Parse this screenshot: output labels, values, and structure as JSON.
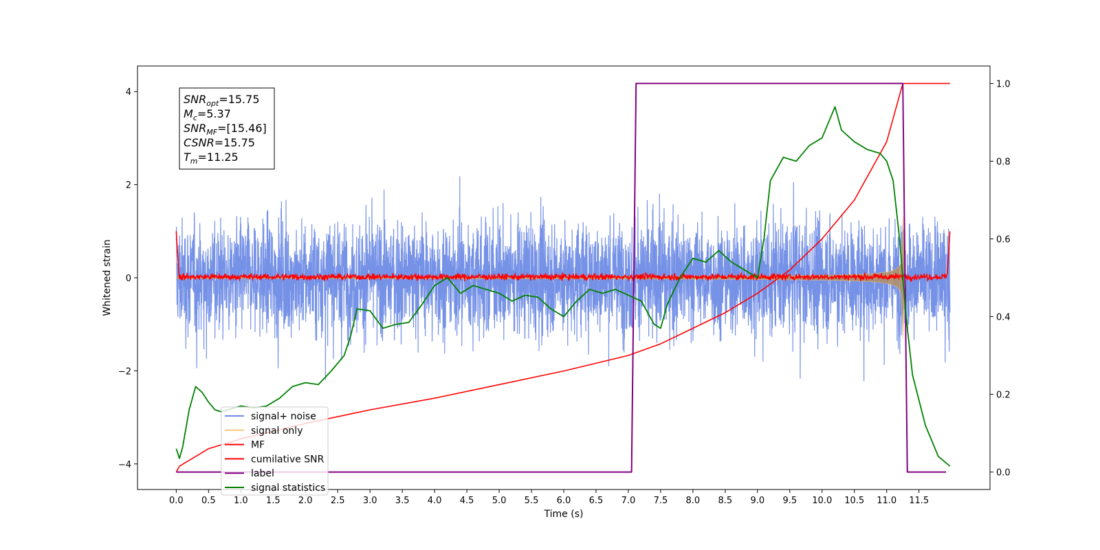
{
  "chart_data": {
    "type": "line",
    "xlabel": "Time (s)",
    "ylabel": "Whitened strain",
    "xlim": [
      -0.6,
      12.6
    ],
    "ylim": [
      -4.55,
      4.55
    ],
    "y2lim": [
      -0.045,
      1.045
    ],
    "x_ticks": [
      "0.0",
      "0.5",
      "1.0",
      "1.5",
      "2.0",
      "2.5",
      "3.0",
      "3.5",
      "4.0",
      "4.5",
      "5.0",
      "5.5",
      "6.0",
      "6.5",
      "7.0",
      "7.5",
      "8.0",
      "8.5",
      "9.0",
      "9.5",
      "10.0",
      "10.5",
      "11.0",
      "11.5"
    ],
    "y_ticks": [
      "4",
      "2",
      "0",
      "−2",
      "−4"
    ],
    "y2_ticks": [
      "1.0",
      "0.8",
      "0.6",
      "0.4",
      "0.2",
      "0.0"
    ],
    "grid": false,
    "legend_position": "lower-left",
    "annotation": [
      {
        "base": "SNR",
        "sub": "opt",
        "rest": "=15.75"
      },
      {
        "base": "M",
        "sub": "c",
        "rest": "=5.37"
      },
      {
        "base": "SNR",
        "sub": "MF",
        "rest": "=[15.46]"
      },
      {
        "base": "CSNR",
        "sub": "",
        "rest": "=15.75"
      },
      {
        "base": "T",
        "sub": "m",
        "rest": "=11.25"
      }
    ],
    "series": [
      {
        "name": "signal+ noise",
        "color": "#6f8ce6",
        "axis": "left",
        "description": "noisy whitened strain, amplitude roughly ±2.5 with spikes to ±4",
        "x_range": [
          0.0,
          11.98
        ]
      },
      {
        "name": "signal only",
        "color": "#f5c77a",
        "axis": "left",
        "description": "chirp envelope growing to ~±1.5 near 11.25 s",
        "x_range": [
          0.0,
          11.98
        ]
      },
      {
        "name": "MF",
        "color": "#ff0000",
        "axis": "left",
        "description": "matched filter output, near 0 with small noise, ~1.0 at edges",
        "x_range": [
          0.0,
          11.98
        ]
      },
      {
        "name": "cumilative SNR",
        "color": "#ff0000",
        "axis": "right",
        "x": [
          0.0,
          0.05,
          0.5,
          1.0,
          2.0,
          3.0,
          4.0,
          5.0,
          6.0,
          7.0,
          7.5,
          8.0,
          8.5,
          9.0,
          9.5,
          10.0,
          10.5,
          11.0,
          11.25,
          11.3,
          11.98
        ],
        "y": [
          0.0,
          0.015,
          0.06,
          0.085,
          0.125,
          0.16,
          0.19,
          0.225,
          0.26,
          0.3,
          0.33,
          0.37,
          0.41,
          0.46,
          0.52,
          0.6,
          0.7,
          0.85,
          1.0,
          1.0,
          1.0
        ]
      },
      {
        "name": "label",
        "color": "#800080",
        "axis": "right",
        "x": [
          0.0,
          7.05,
          7.12,
          11.25,
          11.32,
          11.92
        ],
        "y": [
          0.0,
          0.0,
          1.0,
          1.0,
          0.0,
          0.0
        ]
      },
      {
        "name": "signal statistics",
        "color": "#008000",
        "axis": "right",
        "x": [
          0.0,
          0.05,
          0.1,
          0.2,
          0.3,
          0.4,
          0.5,
          0.6,
          0.7,
          0.8,
          1.0,
          1.2,
          1.4,
          1.6,
          1.8,
          2.0,
          2.2,
          2.4,
          2.6,
          2.7,
          2.8,
          3.0,
          3.2,
          3.4,
          3.6,
          3.8,
          4.0,
          4.2,
          4.4,
          4.6,
          4.8,
          5.0,
          5.2,
          5.4,
          5.6,
          5.8,
          6.0,
          6.2,
          6.4,
          6.6,
          6.8,
          7.0,
          7.2,
          7.4,
          7.5,
          7.6,
          7.8,
          8.0,
          8.2,
          8.4,
          8.6,
          8.8,
          9.0,
          9.1,
          9.2,
          9.4,
          9.6,
          9.8,
          10.0,
          10.1,
          10.2,
          10.3,
          10.5,
          10.7,
          10.9,
          11.0,
          11.1,
          11.2,
          11.3,
          11.4,
          11.6,
          11.8,
          11.98
        ],
        "y": [
          0.06,
          0.035,
          0.065,
          0.16,
          0.22,
          0.205,
          0.18,
          0.16,
          0.155,
          0.16,
          0.17,
          0.165,
          0.17,
          0.19,
          0.22,
          0.23,
          0.225,
          0.26,
          0.3,
          0.35,
          0.42,
          0.415,
          0.37,
          0.38,
          0.385,
          0.43,
          0.48,
          0.5,
          0.46,
          0.48,
          0.47,
          0.46,
          0.44,
          0.455,
          0.45,
          0.42,
          0.4,
          0.44,
          0.47,
          0.46,
          0.47,
          0.455,
          0.44,
          0.38,
          0.37,
          0.43,
          0.5,
          0.55,
          0.54,
          0.57,
          0.54,
          0.52,
          0.5,
          0.6,
          0.75,
          0.81,
          0.8,
          0.84,
          0.86,
          0.9,
          0.94,
          0.88,
          0.85,
          0.83,
          0.82,
          0.8,
          0.75,
          0.6,
          0.4,
          0.25,
          0.12,
          0.04,
          0.015
        ]
      }
    ]
  }
}
